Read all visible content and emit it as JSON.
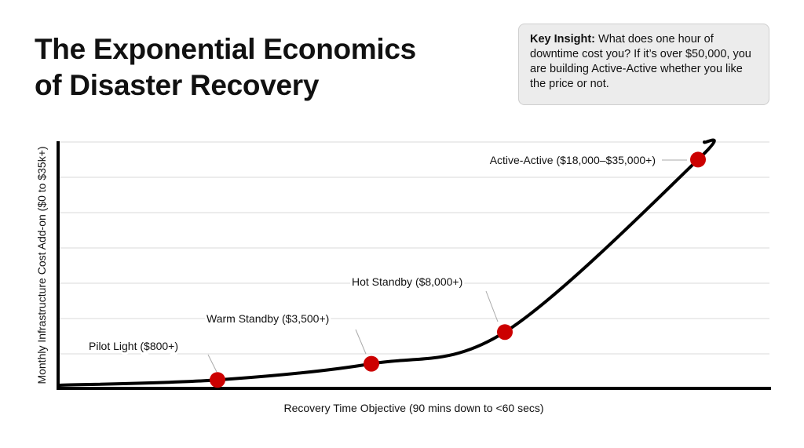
{
  "title_lines": [
    "The Exponential Economics",
    "of Disaster Recovery"
  ],
  "insight": {
    "label": "Key Insight:",
    "text": " What does one hour of downtime cost you? If it’s over $50,000, you are building Active-Active whether you like the price or not."
  },
  "chart_data": {
    "type": "line",
    "xlabel": "Recovery Time Objective (90 mins down to <60 secs)",
    "ylabel": "Monthly Infrastructure Cost Add-on ($0 to $35k+)",
    "ylim": [
      0,
      35000
    ],
    "grid": true,
    "curve": "exponential",
    "points": [
      {
        "label": "Pilot Light ($800+)",
        "y": 1200
      },
      {
        "label": "Warm Standby ($3,500+)",
        "y": 3500
      },
      {
        "label": "Hot Standby ($8,000+)",
        "y": 8000
      },
      {
        "label": "Active-Active ($18,000–$35,000+)",
        "y": 32500
      }
    ],
    "colors": {
      "curve": "#000000",
      "points": "#cc0000",
      "grid": "#e6e6e6",
      "insight_bg": "#ececec"
    }
  }
}
